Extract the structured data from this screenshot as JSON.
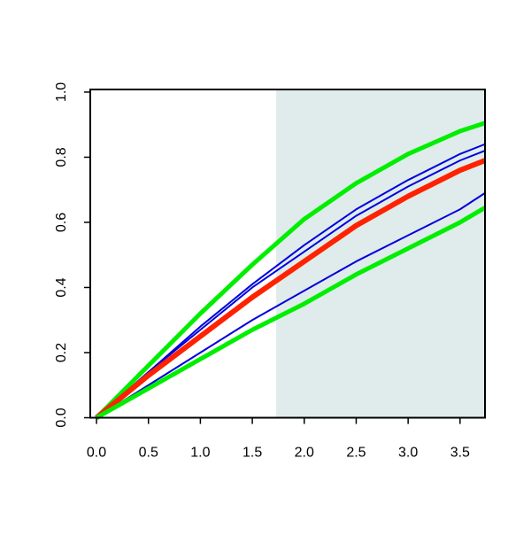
{
  "chart_data": {
    "type": "line",
    "x": [
      0,
      0.5,
      1,
      1.5,
      2,
      2.5,
      3,
      3.5,
      3.74
    ],
    "series": [
      {
        "color": "#00ee00",
        "width": 5,
        "values": [
          0,
          0.16,
          0.32,
          0.47,
          0.61,
          0.72,
          0.81,
          0.88,
          0.905
        ]
      },
      {
        "color": "#0000dd",
        "width": 2,
        "values": [
          0,
          0.14,
          0.28,
          0.41,
          0.53,
          0.64,
          0.73,
          0.81,
          0.84
        ]
      },
      {
        "color": "#0000dd",
        "width": 2,
        "values": [
          0,
          0.14,
          0.27,
          0.4,
          0.51,
          0.62,
          0.71,
          0.79,
          0.82
        ]
      },
      {
        "color": "#ff2200",
        "width": 6,
        "values": [
          0,
          0.13,
          0.25,
          0.37,
          0.48,
          0.59,
          0.68,
          0.76,
          0.79
        ]
      },
      {
        "color": "#0000dd",
        "width": 2,
        "values": [
          0,
          0.1,
          0.2,
          0.3,
          0.39,
          0.48,
          0.56,
          0.64,
          0.69
        ]
      },
      {
        "color": "#00ee00",
        "width": 5,
        "values": [
          0,
          0.09,
          0.18,
          0.27,
          0.35,
          0.44,
          0.52,
          0.6,
          0.645
        ]
      }
    ],
    "shaded_xrange": [
      1.73,
      3.74
    ],
    "shade_color": "#e0ecec",
    "xlim": [
      -0.06,
      3.74
    ],
    "ylim": [
      0,
      1.008
    ],
    "xticks": [
      {
        "value": 0,
        "label": "0.0"
      },
      {
        "value": 0.5,
        "label": "0.5"
      },
      {
        "value": 1,
        "label": "1.0"
      },
      {
        "value": 1.5,
        "label": "1.5"
      },
      {
        "value": 2,
        "label": "2.0"
      },
      {
        "value": 2.5,
        "label": "2.5"
      },
      {
        "value": 3,
        "label": "3.0"
      },
      {
        "value": 3.5,
        "label": "3.5"
      }
    ],
    "yticks": [
      {
        "value": 0,
        "label": "0.0"
      },
      {
        "value": 0.2,
        "label": "0.2"
      },
      {
        "value": 0.4,
        "label": "0.4"
      },
      {
        "value": 0.6,
        "label": "0.6"
      },
      {
        "value": 0.8,
        "label": "0.8"
      },
      {
        "value": 1,
        "label": "1.0"
      }
    ]
  }
}
